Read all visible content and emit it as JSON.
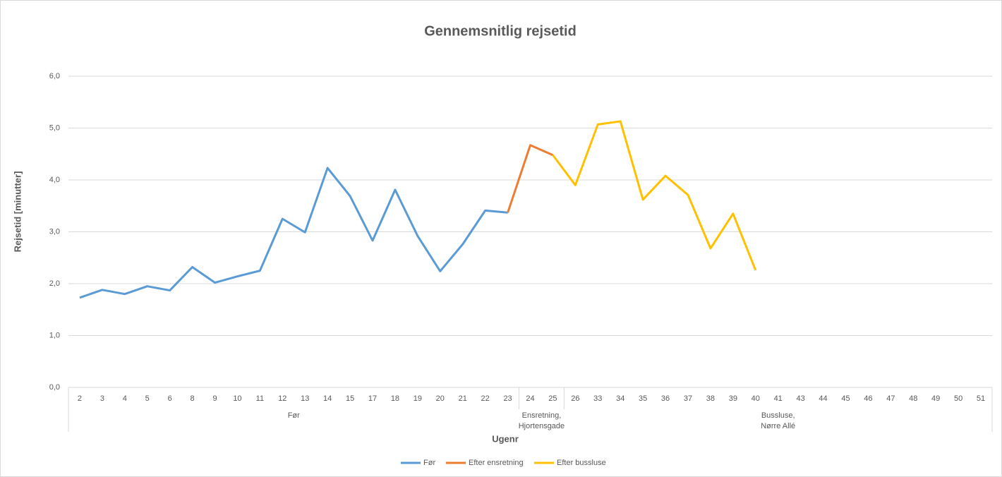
{
  "chart_data": {
    "type": "line",
    "title": "Gennemsnitlig rejsetid",
    "y_label": "Rejsetid [minutter]",
    "x_label": "Ugenr",
    "groups": [
      {
        "label": [
          "Før"
        ],
        "categories": [
          "2",
          "3",
          "4",
          "5",
          "6",
          "8",
          "9",
          "10",
          "11",
          "12",
          "13",
          "14",
          "15",
          "17",
          "18",
          "19",
          "20",
          "21",
          "22",
          "23"
        ]
      },
      {
        "label": [
          "Ensretning,",
          "Hjortensgade"
        ],
        "categories": [
          "24",
          "25"
        ]
      },
      {
        "label": [
          "Bussluse,",
          "Nørre Allé"
        ],
        "categories": [
          "26",
          "33",
          "34",
          "35",
          "36",
          "37",
          "38",
          "39",
          "40",
          "41",
          "43",
          "44",
          "45",
          "46",
          "47",
          "48",
          "49",
          "50",
          "51"
        ]
      }
    ],
    "series": [
      {
        "name": "Før",
        "color": "#5b9bd5",
        "values": [
          1.73,
          1.88,
          1.8,
          1.95,
          1.87,
          2.32,
          2.02,
          2.14,
          2.25,
          3.25,
          2.99,
          4.23,
          3.69,
          2.83,
          3.81,
          2.92,
          2.24,
          2.76,
          3.41,
          3.37,
          null,
          null,
          null,
          null,
          null,
          null,
          null,
          null,
          null,
          null,
          null,
          null,
          null,
          null,
          null,
          null,
          null,
          null,
          null,
          null,
          null
        ]
      },
      {
        "name": "Efter ensretning",
        "color": "#ed7d31",
        "values": [
          null,
          null,
          null,
          null,
          null,
          null,
          null,
          null,
          null,
          null,
          null,
          null,
          null,
          null,
          null,
          null,
          null,
          null,
          null,
          3.37,
          4.67,
          4.48,
          null,
          null,
          null,
          null,
          null,
          null,
          null,
          null,
          null,
          null,
          null,
          null,
          null,
          null,
          null,
          null,
          null,
          null,
          null
        ]
      },
      {
        "name": "Efter bussluse",
        "color": "#ffc000",
        "values": [
          null,
          null,
          null,
          null,
          null,
          null,
          null,
          null,
          null,
          null,
          null,
          null,
          null,
          null,
          null,
          null,
          null,
          null,
          null,
          null,
          null,
          4.48,
          3.9,
          5.07,
          5.13,
          3.62,
          4.08,
          3.71,
          2.68,
          3.35,
          2.26,
          null,
          null,
          null,
          null,
          null,
          null,
          null,
          null,
          null,
          null
        ]
      }
    ],
    "ylim": [
      0,
      6
    ],
    "yticks": [
      {
        "value": 0,
        "label": "0,0"
      },
      {
        "value": 1,
        "label": "1,0"
      },
      {
        "value": 2,
        "label": "2,0"
      },
      {
        "value": 3,
        "label": "3,0"
      },
      {
        "value": 4,
        "label": "4,0"
      },
      {
        "value": 5,
        "label": "5,0"
      },
      {
        "value": 6,
        "label": "6,0"
      }
    ],
    "grid": true,
    "legend": "bottom"
  }
}
